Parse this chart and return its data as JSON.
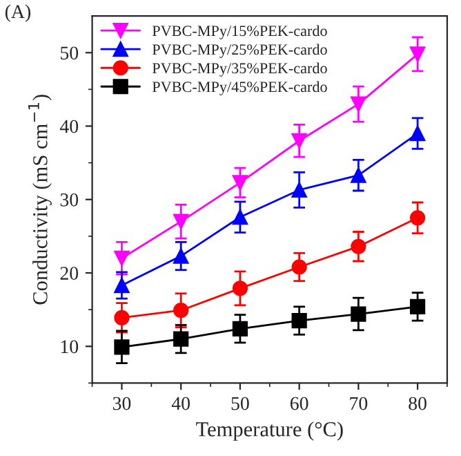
{
  "chart_data": {
    "type": "line",
    "xlabel": "Temperature (°C)",
    "ylabel": "Conductivity (mS cm$^{−1}$)",
    "annotations": [
      "(A)"
    ],
    "x": [
      30,
      40,
      50,
      60,
      70,
      80
    ],
    "xlim": [
      25,
      85
    ],
    "xticks": [
      30,
      40,
      50,
      60,
      70,
      80
    ],
    "ylim": [
      5,
      55
    ],
    "yticks": [
      10,
      20,
      30,
      40,
      50
    ],
    "legend": "top left",
    "grid": false,
    "series": [
      {
        "name": "PVBC-MPy/15%PEK-cardo",
        "color": "#ff00ff",
        "marker": "triangle_down",
        "values": [
          22,
          27,
          32.3,
          38,
          43,
          49.8
        ],
        "errors": [
          2.2,
          2.3,
          2,
          2.2,
          2.4,
          2.3
        ]
      },
      {
        "name": "PVBC-MPy/25%PEK-cardo",
        "color": "#0000ff",
        "marker": "triangle",
        "values": [
          18.3,
          22.3,
          27.6,
          31.3,
          33.3,
          39
        ],
        "errors": [
          1.8,
          1.9,
          2.1,
          2.4,
          2.1,
          2.1
        ]
      },
      {
        "name": "PVBC-MPy/35%PEK-cardo",
        "color": "#ff0000",
        "marker": "circle",
        "values": [
          13.9,
          14.9,
          17.9,
          20.8,
          23.6,
          27.5
        ],
        "errors": [
          2,
          2.3,
          2.3,
          1.9,
          2,
          2.1
        ]
      },
      {
        "name": "PVBC-MPy/45%PEK-cardo",
        "color": "#000000",
        "marker": "square",
        "values": [
          9.9,
          11,
          12.4,
          13.5,
          14.4,
          15.4
        ],
        "errors": [
          2.2,
          1.9,
          1.9,
          1.9,
          2.2,
          1.9
        ]
      }
    ]
  }
}
